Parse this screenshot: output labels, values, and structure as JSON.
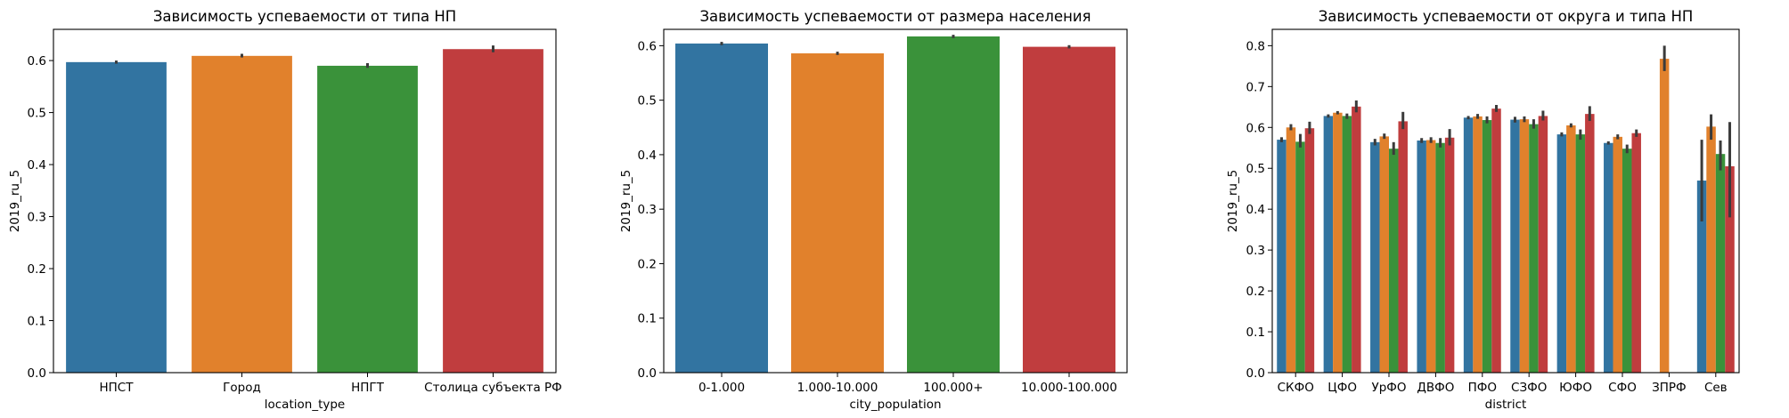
{
  "colors": [
    "#3274a1",
    "#e1812c",
    "#3a923a",
    "#c03d3e"
  ],
  "chart_data": [
    {
      "type": "bar",
      "title": "Зависимость успеваемости от типа НП",
      "xlabel": "location_type",
      "ylabel": "2019_ru_5",
      "ylim": [
        0,
        0.66
      ],
      "yticks": [
        "0.0",
        "0.1",
        "0.2",
        "0.3",
        "0.4",
        "0.5",
        "0.6"
      ],
      "categories": [
        "НПСТ",
        "Город",
        "НПГТ",
        "Столица субъекта РФ"
      ],
      "values": [
        0.597,
        0.609,
        0.59,
        0.622
      ],
      "errors": [
        [
          0.594,
          0.6
        ],
        [
          0.606,
          0.613
        ],
        [
          0.586,
          0.595
        ],
        [
          0.616,
          0.629
        ]
      ],
      "grid": false,
      "legend": "none"
    },
    {
      "type": "bar",
      "title": "Зависимость успеваемости от размера населения",
      "xlabel": "city_population",
      "ylabel": "2019_ru_5",
      "ylim": [
        0,
        0.63
      ],
      "yticks": [
        "0.0",
        "0.1",
        "0.2",
        "0.3",
        "0.4",
        "0.5",
        "0.6"
      ],
      "categories": [
        "0-1.000",
        "1.000-10.000",
        "100.000+",
        "10.000-100.000"
      ],
      "values": [
        0.604,
        0.586,
        0.617,
        0.598
      ],
      "errors": [
        [
          0.601,
          0.607
        ],
        [
          0.583,
          0.589
        ],
        [
          0.614,
          0.62
        ],
        [
          0.595,
          0.601
        ]
      ],
      "grid": false,
      "legend": "none"
    },
    {
      "type": "bar",
      "title": "Зависимость успеваемости от округа и типа НП",
      "xlabel": "district",
      "ylabel": "2019_ru_5",
      "ylim": [
        0,
        0.84
      ],
      "yticks": [
        "0.0",
        "0.1",
        "0.2",
        "0.3",
        "0.4",
        "0.5",
        "0.6",
        "0.7",
        "0.8"
      ],
      "categories": [
        "СКФО",
        "ЦФО",
        "УрФО",
        "ДВФО",
        "ПФО",
        "СЗФО",
        "ЮФО",
        "СФО",
        "ЗПРФ",
        "Сев"
      ],
      "series": [
        {
          "values": [
            0.57,
            0.628,
            0.564,
            0.568,
            0.624,
            0.619,
            0.583,
            0.562,
            null,
            0.47
          ],
          "errors": [
            [
              0.564,
              0.576
            ],
            [
              0.624,
              0.632
            ],
            [
              0.556,
              0.572
            ],
            [
              0.562,
              0.574
            ],
            [
              0.62,
              0.628
            ],
            [
              0.612,
              0.626
            ],
            [
              0.578,
              0.588
            ],
            [
              0.558,
              0.566
            ],
            null,
            [
              0.37,
              0.57
            ]
          ]
        },
        {
          "values": [
            0.6,
            0.636,
            0.578,
            0.569,
            0.627,
            0.62,
            0.605,
            0.577,
            0.768,
            0.602
          ],
          "errors": [
            [
              0.593,
              0.608
            ],
            [
              0.632,
              0.64
            ],
            [
              0.572,
              0.585
            ],
            [
              0.562,
              0.576
            ],
            [
              0.621,
              0.633
            ],
            [
              0.613,
              0.627
            ],
            [
              0.6,
              0.61
            ],
            [
              0.571,
              0.583
            ],
            [
              0.738,
              0.8
            ],
            [
              0.57,
              0.632
            ]
          ]
        },
        {
          "values": [
            0.565,
            0.628,
            0.548,
            0.562,
            0.618,
            0.608,
            0.583,
            0.548,
            null,
            0.535
          ],
          "errors": [
            [
              0.551,
              0.584
            ],
            [
              0.621,
              0.634
            ],
            [
              0.533,
              0.564
            ],
            [
              0.551,
              0.574
            ],
            [
              0.61,
              0.627
            ],
            [
              0.597,
              0.62
            ],
            [
              0.57,
              0.595
            ],
            [
              0.537,
              0.558
            ],
            null,
            [
              0.495,
              0.568
            ]
          ]
        },
        {
          "values": [
            0.598,
            0.651,
            0.615,
            0.575,
            0.646,
            0.628,
            0.633,
            0.586,
            null,
            0.505
          ],
          "errors": [
            [
              0.584,
              0.614
            ],
            [
              0.637,
              0.666
            ],
            [
              0.596,
              0.638
            ],
            [
              0.556,
              0.596
            ],
            [
              0.638,
              0.655
            ],
            [
              0.617,
              0.641
            ],
            [
              0.616,
              0.652
            ],
            [
              0.577,
              0.595
            ],
            null,
            [
              0.38,
              0.613
            ]
          ]
        }
      ],
      "grid": false,
      "legend": "none"
    }
  ]
}
